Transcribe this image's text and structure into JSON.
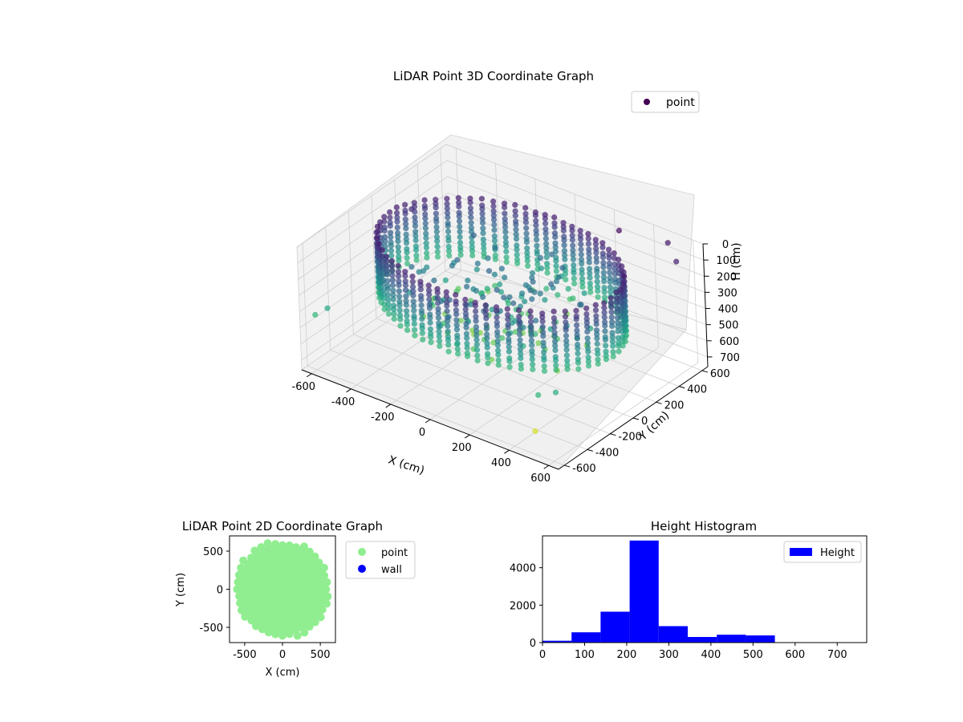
{
  "chart_data": [
    {
      "type": "scatter3d",
      "title": "LiDAR Point 3D Coordinate Graph",
      "xlabel": "X (cm)",
      "ylabel": "Y (cm)",
      "zlabel": "H (cm)",
      "xlim": [
        -650,
        650
      ],
      "ylim": [
        -650,
        650
      ],
      "zlim": [
        0,
        760
      ],
      "z_inverted": true,
      "x_ticks": [
        -600,
        -400,
        -200,
        0,
        200,
        400,
        600
      ],
      "y_ticks": [
        -600,
        -400,
        -200,
        0,
        200,
        400,
        600
      ],
      "z_ticks": [
        0,
        100,
        200,
        300,
        400,
        500,
        600,
        700
      ],
      "grid": true,
      "colormap": "viridis",
      "legend": {
        "position": "top-right",
        "entries": [
          {
            "name": "point",
            "color": "#440154"
          }
        ]
      },
      "ring": {
        "radius": 560,
        "h_top": 60,
        "h_bottom": 420
      },
      "outliers": [
        {
          "x": -600,
          "y": -600,
          "h": 420
        },
        {
          "x": -560,
          "y": -560,
          "h": 380
        },
        {
          "x": 500,
          "y": 600,
          "h": 40
        },
        {
          "x": 600,
          "y": 500,
          "h": 60
        },
        {
          "x": 500,
          "y": -550,
          "h": 420
        },
        {
          "x": 560,
          "y": -500,
          "h": 400
        },
        {
          "x": 520,
          "y": -620,
          "h": 600
        },
        {
          "x": -520,
          "y": 120,
          "h": 80
        },
        {
          "x": 300,
          "y": 520,
          "h": 20
        }
      ]
    },
    {
      "type": "scatter",
      "title": "LiDAR Point 2D Coordinate Graph",
      "xlabel": "X (cm)",
      "ylabel": "Y (cm)",
      "xlim": [
        -700,
        700
      ],
      "ylim": [
        -700,
        700
      ],
      "x_ticks": [
        -500,
        0,
        500
      ],
      "y_ticks": [
        -500,
        0,
        500
      ],
      "legend": {
        "position": "right",
        "entries": [
          {
            "name": "point",
            "color": "#90ee90"
          },
          {
            "name": "wall",
            "color": "#0000ff"
          }
        ]
      },
      "cloud_center": [
        0,
        0
      ],
      "cloud_radius": 600
    },
    {
      "type": "bar",
      "title": "Height Histogram",
      "xlim": [
        0,
        770
      ],
      "ylim": [
        0,
        5700
      ],
      "x_ticks": [
        0,
        100,
        200,
        300,
        400,
        500,
        600,
        700
      ],
      "y_ticks": [
        0,
        2000,
        4000
      ],
      "legend": {
        "position": "top-right",
        "entries": [
          {
            "name": "Height",
            "color": "#0000ff"
          }
        ]
      },
      "bins": [
        {
          "start": 0,
          "end": 69,
          "value": 100
        },
        {
          "start": 69,
          "end": 138,
          "value": 550
        },
        {
          "start": 138,
          "end": 207,
          "value": 1650
        },
        {
          "start": 207,
          "end": 276,
          "value": 5450
        },
        {
          "start": 276,
          "end": 345,
          "value": 880
        },
        {
          "start": 345,
          "end": 414,
          "value": 300
        },
        {
          "start": 414,
          "end": 483,
          "value": 420
        },
        {
          "start": 483,
          "end": 552,
          "value": 380
        },
        {
          "start": 552,
          "end": 621,
          "value": 0
        },
        {
          "start": 621,
          "end": 690,
          "value": 0
        }
      ]
    }
  ]
}
